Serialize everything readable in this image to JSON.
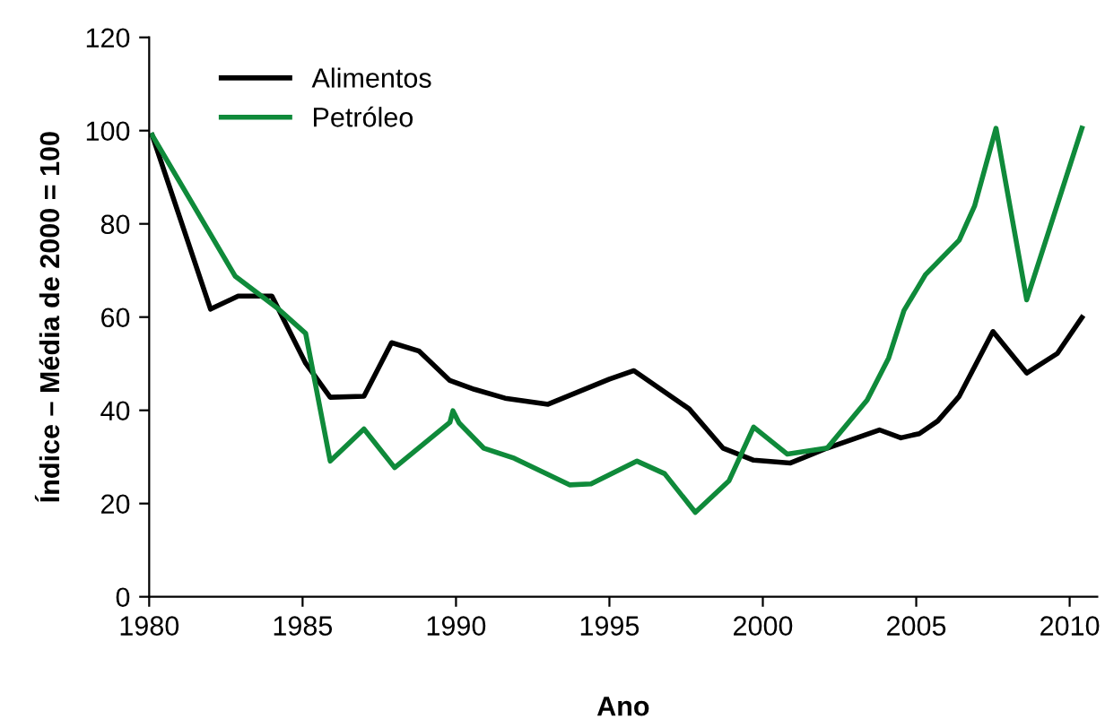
{
  "chart_data": {
    "type": "line",
    "xlabel": "Ano",
    "ylabel": "Índice – Média de 2000 = 100",
    "xlim": [
      1980,
      2010.9
    ],
    "ylim": [
      0,
      120
    ],
    "xticks": [
      1980,
      1985,
      1990,
      1995,
      2000,
      2005,
      2010
    ],
    "yticks": [
      0,
      20,
      40,
      60,
      80,
      100,
      120
    ],
    "grid": false,
    "legend": "top left",
    "marker": "none",
    "line_style": "solid",
    "series": [
      {
        "name": "Alimentos",
        "color": "#000000",
        "x": [
          1980.1,
          1982.0,
          1982.9,
          1984.0,
          1985.1,
          1985.9,
          1987.0,
          1987.9,
          1988.8,
          1989.8,
          1990.6,
          1991.6,
          1993.0,
          1995.0,
          1995.8,
          1997.6,
          1998.7,
          1999.7,
          2000.9,
          2002.1,
          2003.8,
          2004.5,
          2005.1,
          2005.7,
          2006.4,
          2007.5,
          2008.6,
          2009.6,
          2010.4
        ],
        "values": [
          99,
          61.7,
          64.5,
          64.5,
          50.1,
          42.8,
          43,
          54.5,
          52.7,
          46.4,
          44.5,
          42.6,
          41.3,
          46.7,
          48.5,
          40.3,
          31.9,
          29.3,
          28.7,
          31.9,
          35.8,
          34.1,
          35,
          37.7,
          43,
          56.9,
          48,
          52.2,
          59.9
        ]
      },
      {
        "name": "Petróleo",
        "color": "#0f8a3a",
        "x": [
          1980.1,
          1982.8,
          1984.2,
          1985.1,
          1985.9,
          1987.0,
          1988.0,
          1989.8,
          1989.9,
          1990.1,
          1990.9,
          1991.9,
          1993.7,
          1994.4,
          1995.9,
          1996.8,
          1997.8,
          1998.9,
          1999.7,
          2000.8,
          2002.1,
          2003.4,
          2004.1,
          2004.6,
          2005.3,
          2006.4,
          2006.9,
          2007.6,
          2008.6,
          2010.4
        ],
        "values": [
          99,
          68.8,
          61.8,
          56.5,
          29.1,
          36,
          27.7,
          37.4,
          39.9,
          37.3,
          31.9,
          29.7,
          24,
          24.2,
          29.1,
          26.4,
          18.1,
          24.9,
          36.4,
          30.6,
          31.9,
          42.2,
          51.2,
          61.4,
          69.1,
          76.5,
          83.8,
          100.5,
          63.7,
          100.5
        ]
      }
    ]
  }
}
